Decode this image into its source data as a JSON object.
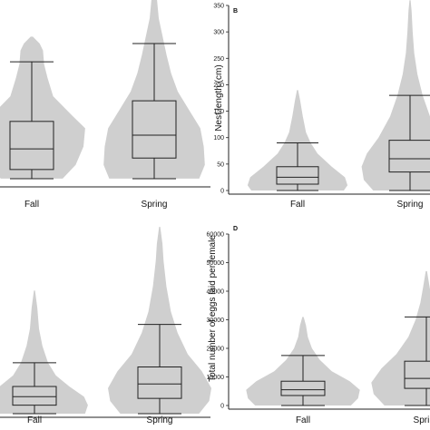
{
  "chart_data": [
    {
      "panel": "",
      "type": "violin",
      "categories": [
        "Fall",
        "Spring"
      ],
      "ylabel": "",
      "ylim": [
        0,
        400
      ],
      "yticks": [],
      "grid": false,
      "series": [
        {
          "category": "Fall",
          "whisker_low": 10,
          "q1": 30,
          "median": 75,
          "q3": 135,
          "whisker_high": 265,
          "max": 320,
          "density": [
            [
              10,
              0.55
            ],
            [
              40,
              0.78
            ],
            [
              80,
              0.92
            ],
            [
              120,
              0.95
            ],
            [
              150,
              0.7
            ],
            [
              190,
              0.38
            ],
            [
              230,
              0.28
            ],
            [
              260,
              0.22
            ],
            [
              290,
              0.2
            ],
            [
              305,
              0.14
            ],
            [
              320,
              0.02
            ]
          ]
        },
        {
          "category": "Spring",
          "whisker_low": 10,
          "q1": 55,
          "median": 105,
          "q3": 180,
          "whisker_high": 305,
          "max": 470,
          "density": [
            [
              10,
              0.8
            ],
            [
              40,
              0.9
            ],
            [
              80,
              0.88
            ],
            [
              120,
              0.82
            ],
            [
              160,
              0.62
            ],
            [
              200,
              0.42
            ],
            [
              240,
              0.3
            ],
            [
              280,
              0.22
            ],
            [
              320,
              0.15
            ],
            [
              360,
              0.08
            ],
            [
              400,
              0.05
            ],
            [
              440,
              0.04
            ],
            [
              470,
              0.01
            ]
          ]
        }
      ]
    },
    {
      "panel": "B",
      "type": "violin",
      "categories": [
        "Fall",
        "Spring"
      ],
      "ylabel": "Nest length (cm)",
      "ylim": [
        0,
        350
      ],
      "yticks": [
        0,
        50,
        100,
        150,
        200,
        250,
        300,
        350
      ],
      "grid": false,
      "series": [
        {
          "category": "Fall",
          "whisker_low": 0,
          "q1": 12,
          "median": 25,
          "q3": 45,
          "whisker_high": 90,
          "max": 190,
          "density": [
            [
              0,
              0.88
            ],
            [
              10,
              0.95
            ],
            [
              25,
              0.9
            ],
            [
              45,
              0.65
            ],
            [
              70,
              0.38
            ],
            [
              90,
              0.25
            ],
            [
              110,
              0.16
            ],
            [
              140,
              0.1
            ],
            [
              170,
              0.05
            ],
            [
              190,
              0.01
            ]
          ]
        },
        {
          "category": "Spring",
          "whisker_low": 0,
          "q1": 35,
          "median": 60,
          "q3": 95,
          "whisker_high": 180,
          "max": 360,
          "density": [
            [
              0,
              0.7
            ],
            [
              20,
              0.88
            ],
            [
              45,
              0.92
            ],
            [
              70,
              0.82
            ],
            [
              100,
              0.6
            ],
            [
              140,
              0.38
            ],
            [
              180,
              0.24
            ],
            [
              220,
              0.14
            ],
            [
              260,
              0.08
            ],
            [
              300,
              0.05
            ],
            [
              340,
              0.03
            ],
            [
              360,
              0.01
            ]
          ]
        }
      ]
    },
    {
      "panel": "",
      "type": "violin",
      "categories": [
        "Fall",
        "Spring"
      ],
      "ylabel": "",
      "ylim": [
        0,
        220
      ],
      "yticks": [],
      "grid": false,
      "series": [
        {
          "category": "Fall",
          "whisker_low": 0,
          "q1": 10,
          "median": 20,
          "q3": 32,
          "whisker_high": 60,
          "max": 145,
          "density": [
            [
              0,
              0.9
            ],
            [
              10,
              0.95
            ],
            [
              20,
              0.88
            ],
            [
              32,
              0.62
            ],
            [
              45,
              0.38
            ],
            [
              60,
              0.24
            ],
            [
              80,
              0.14
            ],
            [
              100,
              0.08
            ],
            [
              125,
              0.05
            ],
            [
              145,
              0.01
            ]
          ]
        },
        {
          "category": "Spring",
          "whisker_low": 0,
          "q1": 18,
          "median": 35,
          "q3": 55,
          "whisker_high": 105,
          "max": 220,
          "density": [
            [
              0,
              0.7
            ],
            [
              15,
              0.88
            ],
            [
              30,
              0.92
            ],
            [
              50,
              0.75
            ],
            [
              70,
              0.5
            ],
            [
              95,
              0.32
            ],
            [
              120,
              0.2
            ],
            [
              150,
              0.12
            ],
            [
              180,
              0.07
            ],
            [
              200,
              0.05
            ],
            [
              220,
              0.01
            ]
          ]
        }
      ]
    },
    {
      "panel": "D",
      "type": "violin",
      "categories": [
        "Fall",
        "Spring"
      ],
      "ylabel": "Total number of eggs laid per female",
      "ylim": [
        0,
        60000
      ],
      "yticks": [
        0,
        10000,
        20000,
        30000,
        40000,
        50000,
        60000
      ],
      "grid": false,
      "series": [
        {
          "category": "Fall",
          "whisker_low": 0,
          "q1": 3500,
          "median": 5500,
          "q3": 8500,
          "whisker_high": 17500,
          "max": 31000,
          "density": [
            [
              0,
              0.8
            ],
            [
              2500,
              0.92
            ],
            [
              5500,
              0.95
            ],
            [
              8500,
              0.78
            ],
            [
              12000,
              0.48
            ],
            [
              16000,
              0.28
            ],
            [
              20000,
              0.15
            ],
            [
              24000,
              0.08
            ],
            [
              28000,
              0.05
            ],
            [
              31000,
              0.01
            ]
          ]
        },
        {
          "category": "Spring",
          "whisker_low": 0,
          "q1": 6000,
          "median": 9500,
          "q3": 15500,
          "whisker_high": 31000,
          "max": 47000,
          "density": [
            [
              0,
              0.7
            ],
            [
              4000,
              0.88
            ],
            [
              8000,
              0.92
            ],
            [
              13000,
              0.75
            ],
            [
              18000,
              0.5
            ],
            [
              24000,
              0.3
            ],
            [
              30000,
              0.18
            ],
            [
              36000,
              0.1
            ],
            [
              42000,
              0.05
            ],
            [
              47000,
              0.01
            ]
          ]
        }
      ]
    }
  ]
}
